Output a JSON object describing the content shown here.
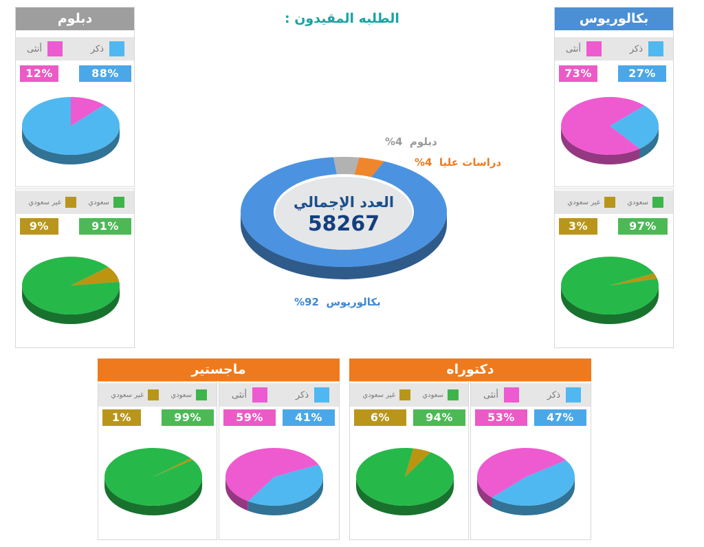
{
  "title": "الطلبه المقيدون :",
  "colors": {
    "male": "#4fb8f0",
    "female": "#ee5ad0",
    "saudi": "#27b84a",
    "nonsaudi": "#bd9410",
    "gender_legend_male": "#4fb8f0",
    "gender_legend_female": "#ee5ad0",
    "nat_legend_saudi": "#3db54a",
    "nat_legend_nonsaudi": "#b9961b",
    "male_label": "#4aa8e8",
    "female_label": "#ec5ac7",
    "saudi_label": "#4cb955",
    "nonsaudi_label": "#b9961b",
    "header_blue": "#4b8fd4",
    "header_gray": "#9e9e9e",
    "header_orange": "#ef7a1d"
  },
  "legend": {
    "male": "ذكر",
    "female": "أنثى",
    "saudi": "سعودي",
    "nonsaudi": "غير سعودي"
  },
  "total": {
    "label": "العدد الإجمالي",
    "value": "58267"
  },
  "donut": {
    "segments": [
      {
        "key": "bachelor",
        "label": "بكالوريوس",
        "pct_text": "92%",
        "value": 92,
        "color": "#4b93e0"
      },
      {
        "key": "diploma",
        "label": "دبلوم",
        "pct_text": "4%",
        "value": 4,
        "color": "#b2b2b2"
      },
      {
        "key": "graduate",
        "label": "دراسات عليا",
        "pct_text": "4%",
        "value": 4,
        "color": "#f0862c"
      }
    ]
  },
  "panels": {
    "bachelor": {
      "title": "بكالوريوس",
      "gender": {
        "male_text": "27%",
        "female_text": "73%",
        "male": 27,
        "female": 73
      },
      "nationality": {
        "saudi_text": "97%",
        "nonsaudi_text": "3%",
        "saudi": 97,
        "nonsaudi": 3
      }
    },
    "diploma": {
      "title": "دبلوم",
      "gender": {
        "male_text": "88%",
        "female_text": "12%",
        "male": 88,
        "female": 12
      },
      "nationality": {
        "saudi_text": "91%",
        "nonsaudi_text": "9%",
        "saudi": 91,
        "nonsaudi": 9
      }
    },
    "doctorate": {
      "title": "دكتوراه",
      "gender": {
        "male_text": "47%",
        "female_text": "53%",
        "male": 47,
        "female": 53
      },
      "nationality": {
        "saudi_text": "94%",
        "nonsaudi_text": "6%",
        "saudi": 94,
        "nonsaudi": 6
      }
    },
    "masters": {
      "title": "ماجستير",
      "gender": {
        "male_text": "41%",
        "female_text": "59%",
        "male": 41,
        "female": 59
      },
      "nationality": {
        "saudi_text": "99%",
        "nonsaudi_text": "1%",
        "saudi": 99,
        "nonsaudi": 1
      }
    }
  },
  "chart_data": [
    {
      "type": "pie",
      "title": "الطلبه المقيدون :",
      "center_label": "العدد الإجمالي",
      "total": 58267,
      "categories": [
        "بكالوريوس",
        "دبلوم",
        "دراسات عليا"
      ],
      "values": [
        92,
        4,
        4
      ]
    },
    {
      "type": "pie",
      "title": "بكالوريوس",
      "categories": [
        "ذكر",
        "أنثى"
      ],
      "values": [
        27,
        73
      ]
    },
    {
      "type": "pie",
      "title": "بكالوريوس",
      "categories": [
        "سعودي",
        "غير سعودي"
      ],
      "values": [
        97,
        3
      ]
    },
    {
      "type": "pie",
      "title": "دبلوم",
      "categories": [
        "ذكر",
        "أنثى"
      ],
      "values": [
        88,
        12
      ]
    },
    {
      "type": "pie",
      "title": "دبلوم",
      "categories": [
        "سعودي",
        "غير سعودي"
      ],
      "values": [
        91,
        9
      ]
    },
    {
      "type": "pie",
      "title": "دكتوراه",
      "categories": [
        "ذكر",
        "أنثى"
      ],
      "values": [
        47,
        53
      ]
    },
    {
      "type": "pie",
      "title": "دكتوراه",
      "categories": [
        "سعودي",
        "غير سعودي"
      ],
      "values": [
        94,
        6
      ]
    },
    {
      "type": "pie",
      "title": "ماجستير",
      "categories": [
        "ذكر",
        "أنثى"
      ],
      "values": [
        41,
        59
      ]
    },
    {
      "type": "pie",
      "title": "ماجستير",
      "categories": [
        "سعودي",
        "غير سعودي"
      ],
      "values": [
        99,
        1
      ]
    }
  ]
}
